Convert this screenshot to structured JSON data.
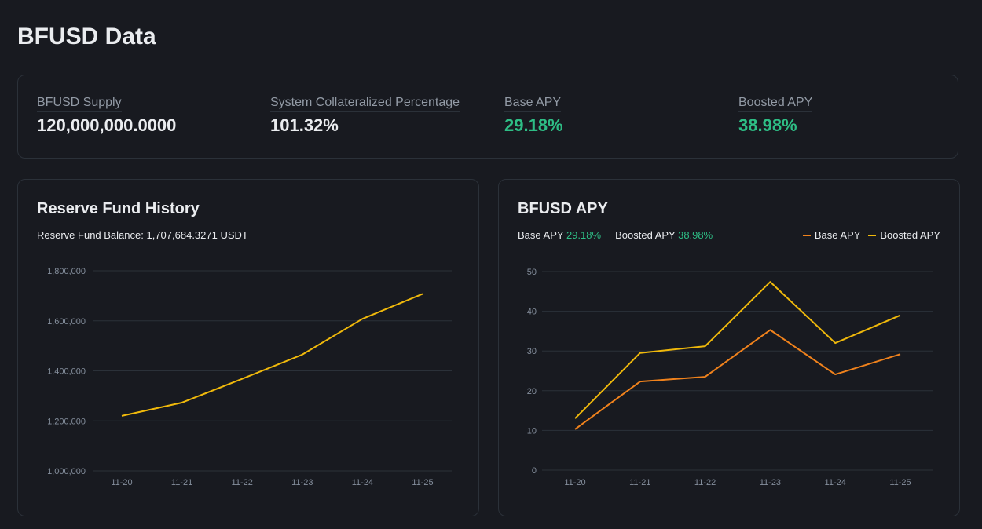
{
  "page": {
    "title": "BFUSD Data"
  },
  "stats": [
    {
      "label": "BFUSD Supply",
      "value": "120,000,000.0000",
      "highlight": false
    },
    {
      "label": "System Collateralized Percentage",
      "value": "101.32%",
      "highlight": false
    },
    {
      "label": "Base APY",
      "value": "29.18%",
      "highlight": true
    },
    {
      "label": "Boosted APY",
      "value": "38.98%",
      "highlight": true
    }
  ],
  "reserve": {
    "title": "Reserve Fund History",
    "balance_label": "Reserve Fund Balance:",
    "balance_value": "1,707,684.3271 USDT"
  },
  "apy": {
    "title": "BFUSD APY",
    "base_label": "Base APY",
    "base_value": "29.18%",
    "boosted_label": "Boosted APY",
    "boosted_value": "38.98%",
    "legend": [
      {
        "label": "Base APY",
        "color": "#f0821c"
      },
      {
        "label": "Boosted APY",
        "color": "#f0b90b"
      }
    ]
  },
  "colors": {
    "green": "#2ebd85",
    "yellow": "#f0b90b",
    "orange": "#f0821c"
  },
  "chart_data": [
    {
      "type": "line",
      "title": "Reserve Fund History",
      "x": [
        "11-20",
        "11-21",
        "11-22",
        "11-23",
        "11-24",
        "11-25"
      ],
      "ylim": [
        1000000,
        1800000
      ],
      "yticks": [
        1000000,
        1200000,
        1400000,
        1600000,
        1800000
      ],
      "ytick_labels": [
        "1,000,000",
        "1,200,000",
        "1,400,000",
        "1,600,000",
        "1,800,000"
      ],
      "grid": true,
      "series": [
        {
          "values": [
            1220000,
            1273000,
            1368000,
            1465000,
            1608000,
            1707684
          ],
          "color": "#f0b90b"
        }
      ]
    },
    {
      "type": "line",
      "title": "BFUSD APY",
      "x": [
        "11-20",
        "11-21",
        "11-22",
        "11-23",
        "11-24",
        "11-25"
      ],
      "ylim": [
        0,
        50
      ],
      "yticks": [
        0,
        10,
        20,
        30,
        40,
        50
      ],
      "ytick_labels": [
        "0",
        "10",
        "20",
        "30",
        "40",
        "50"
      ],
      "grid": true,
      "legend": "top-right",
      "series": [
        {
          "name": "Base APY",
          "values": [
            10.3,
            22.3,
            23.5,
            35.3,
            24.1,
            29.2
          ],
          "color": "#f0821c"
        },
        {
          "name": "Boosted APY",
          "values": [
            13,
            29.5,
            31.2,
            47.4,
            32,
            39
          ],
          "color": "#f0b90b"
        }
      ]
    }
  ]
}
